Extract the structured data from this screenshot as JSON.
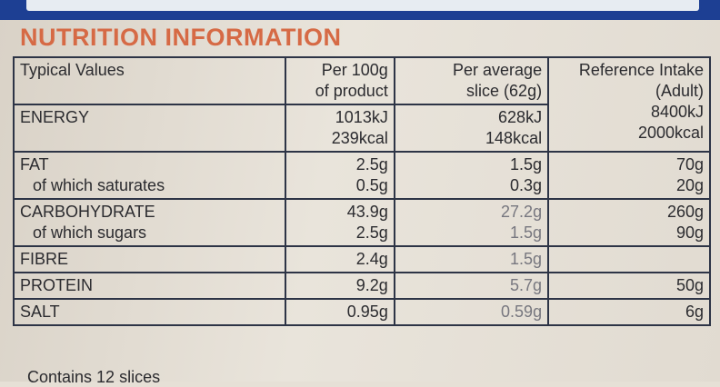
{
  "panel": {
    "title": "NUTRITION INFORMATION",
    "headers": {
      "typical": "Typical Values",
      "per100_line1": "Per 100g",
      "per100_line2": "of product",
      "slice_line1": "Per average",
      "slice_line2": "slice (62g)",
      "ri_line1": "Reference Intake",
      "ri_line2": "(Adult)"
    },
    "energy": {
      "label": "ENERGY",
      "per100_kj": "1013kJ",
      "per100_kcal": "239kcal",
      "slice_kj": "628kJ",
      "slice_kcal": "148kcal",
      "ri_kj": "8400kJ",
      "ri_kcal": "2000kcal"
    },
    "fat": {
      "label": "FAT",
      "sub_label": "of which saturates",
      "per100": "2.5g",
      "per100_sub": "0.5g",
      "slice": "1.5g",
      "slice_sub": "0.3g",
      "ri": "70g",
      "ri_sub": "20g"
    },
    "carbohydrate": {
      "label": "CARBOHYDRATE",
      "sub_label": "of which sugars",
      "per100": "43.9g",
      "per100_sub": "2.5g",
      "slice": "27.2g",
      "slice_sub": "1.5g",
      "ri": "260g",
      "ri_sub": "90g"
    },
    "fibre": {
      "label": "FIBRE",
      "per100": "2.4g",
      "slice": "1.5g",
      "ri": ""
    },
    "protein": {
      "label": "PROTEIN",
      "per100": "9.2g",
      "slice": "5.7g",
      "ri": "50g"
    },
    "salt": {
      "label": "SALT",
      "per100": "0.95g",
      "slice": "0.59g",
      "ri": "6g"
    },
    "footer": "Contains 12 slices"
  },
  "colors": {
    "title": "#d66a45",
    "band": "#1d3f93",
    "text": "#2b2b2f",
    "border": "#2d3446"
  }
}
